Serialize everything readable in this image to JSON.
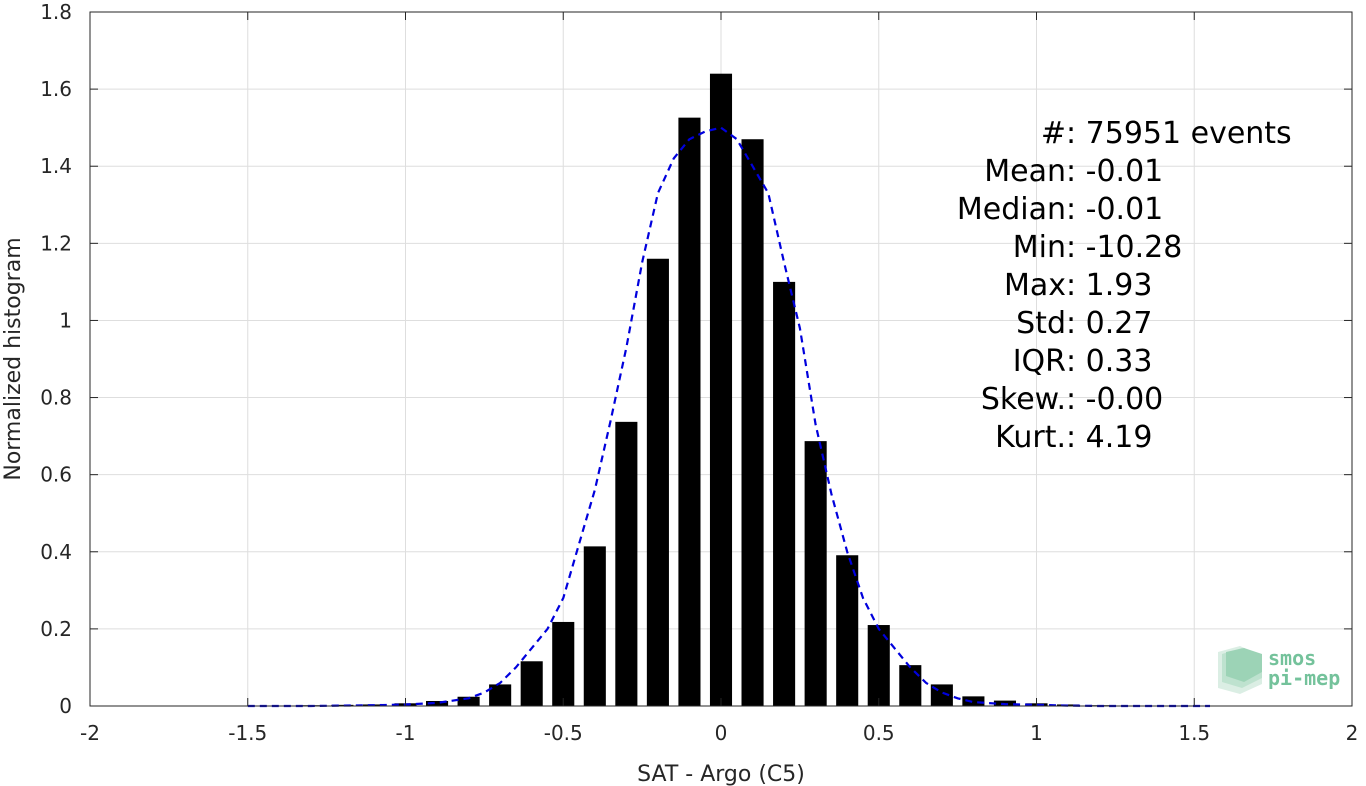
{
  "chart_data": {
    "type": "bar",
    "xlabel": "SAT - Argo (C5)",
    "ylabel": "Normalized histogram",
    "xlim": [
      -2,
      2
    ],
    "ylim": [
      0,
      1.8
    ],
    "xticks": [
      -2,
      -1.5,
      -1,
      -0.5,
      0,
      0.5,
      1,
      1.5,
      2
    ],
    "xtick_labels": [
      "-2",
      "-1.5",
      "-1",
      "-0.5",
      "0",
      "0.5",
      "1",
      "1.5",
      "2"
    ],
    "yticks": [
      0,
      0.2,
      0.4,
      0.6,
      0.8,
      1,
      1.2,
      1.4,
      1.6,
      1.8
    ],
    "ytick_labels": [
      "0",
      "0.2",
      "0.4",
      "0.6",
      "0.8",
      "1",
      "1.2",
      "1.4",
      "1.6",
      "1.8"
    ],
    "grid": true,
    "bar_color": "#000000",
    "bar_width": 0.07,
    "bins": [
      -1.5,
      -1.4,
      -1.3,
      -1.2,
      -1.1,
      -1.0,
      -0.9,
      -0.8,
      -0.7,
      -0.6,
      -0.5,
      -0.4,
      -0.3,
      -0.2,
      -0.1,
      0.0,
      0.1,
      0.2,
      0.3,
      0.4,
      0.5,
      0.6,
      0.7,
      0.8,
      0.9,
      1.0,
      1.1,
      1.2,
      1.3,
      1.4,
      1.5
    ],
    "values": [
      0.001,
      0.001,
      0.002,
      0.003,
      0.004,
      0.007,
      0.013,
      0.024,
      0.056,
      0.116,
      0.218,
      0.414,
      0.737,
      1.16,
      1.526,
      1.64,
      1.47,
      1.1,
      0.687,
      0.391,
      0.21,
      0.106,
      0.056,
      0.025,
      0.014,
      0.007,
      0.004,
      0.002,
      0.001,
      0.001,
      0.001
    ],
    "fit_curve": {
      "style": "dashed",
      "color": "#0000dd",
      "x": [
        -1.5,
        -1.4,
        -1.3,
        -1.2,
        -1.1,
        -1.0,
        -0.9,
        -0.8,
        -0.75,
        -0.7,
        -0.65,
        -0.6,
        -0.55,
        -0.5,
        -0.45,
        -0.4,
        -0.35,
        -0.3,
        -0.25,
        -0.2,
        -0.15,
        -0.1,
        -0.05,
        0.0,
        0.05,
        0.1,
        0.15,
        0.2,
        0.25,
        0.3,
        0.35,
        0.4,
        0.45,
        0.5,
        0.55,
        0.6,
        0.65,
        0.7,
        0.75,
        0.8,
        0.9,
        1.0,
        1.1,
        1.2,
        1.3,
        1.4,
        1.55
      ],
      "y": [
        0.0,
        0.0,
        0.0,
        0.001,
        0.002,
        0.004,
        0.008,
        0.02,
        0.035,
        0.06,
        0.1,
        0.15,
        0.2,
        0.28,
        0.42,
        0.56,
        0.74,
        0.93,
        1.15,
        1.33,
        1.42,
        1.47,
        1.49,
        1.5,
        1.47,
        1.4,
        1.33,
        1.15,
        0.98,
        0.73,
        0.55,
        0.4,
        0.28,
        0.2,
        0.15,
        0.1,
        0.06,
        0.035,
        0.02,
        0.01,
        0.005,
        0.003,
        0.001,
        0.0,
        0.0,
        0.0,
        0.0
      ]
    },
    "stats": [
      {
        "label": "#  ",
        "value": ": 75951 events"
      },
      {
        "label": "Mean ",
        "value": ": -0.01"
      },
      {
        "label": "Median ",
        "value": ": -0.01"
      },
      {
        "label": "Min ",
        "value": ": -10.28"
      },
      {
        "label": "Max ",
        "value": ": 1.93"
      },
      {
        "label": "Std ",
        "value": ": 0.27"
      },
      {
        "label": "IQR ",
        "value": ": 0.33"
      },
      {
        "label": "Skew. ",
        "value": ": -0.00"
      },
      {
        "label": "Kurt. ",
        "value": ": 4.19"
      }
    ]
  },
  "logo": {
    "line1": "smos",
    "line2": "pi-mep",
    "color": "#5cb88a"
  }
}
